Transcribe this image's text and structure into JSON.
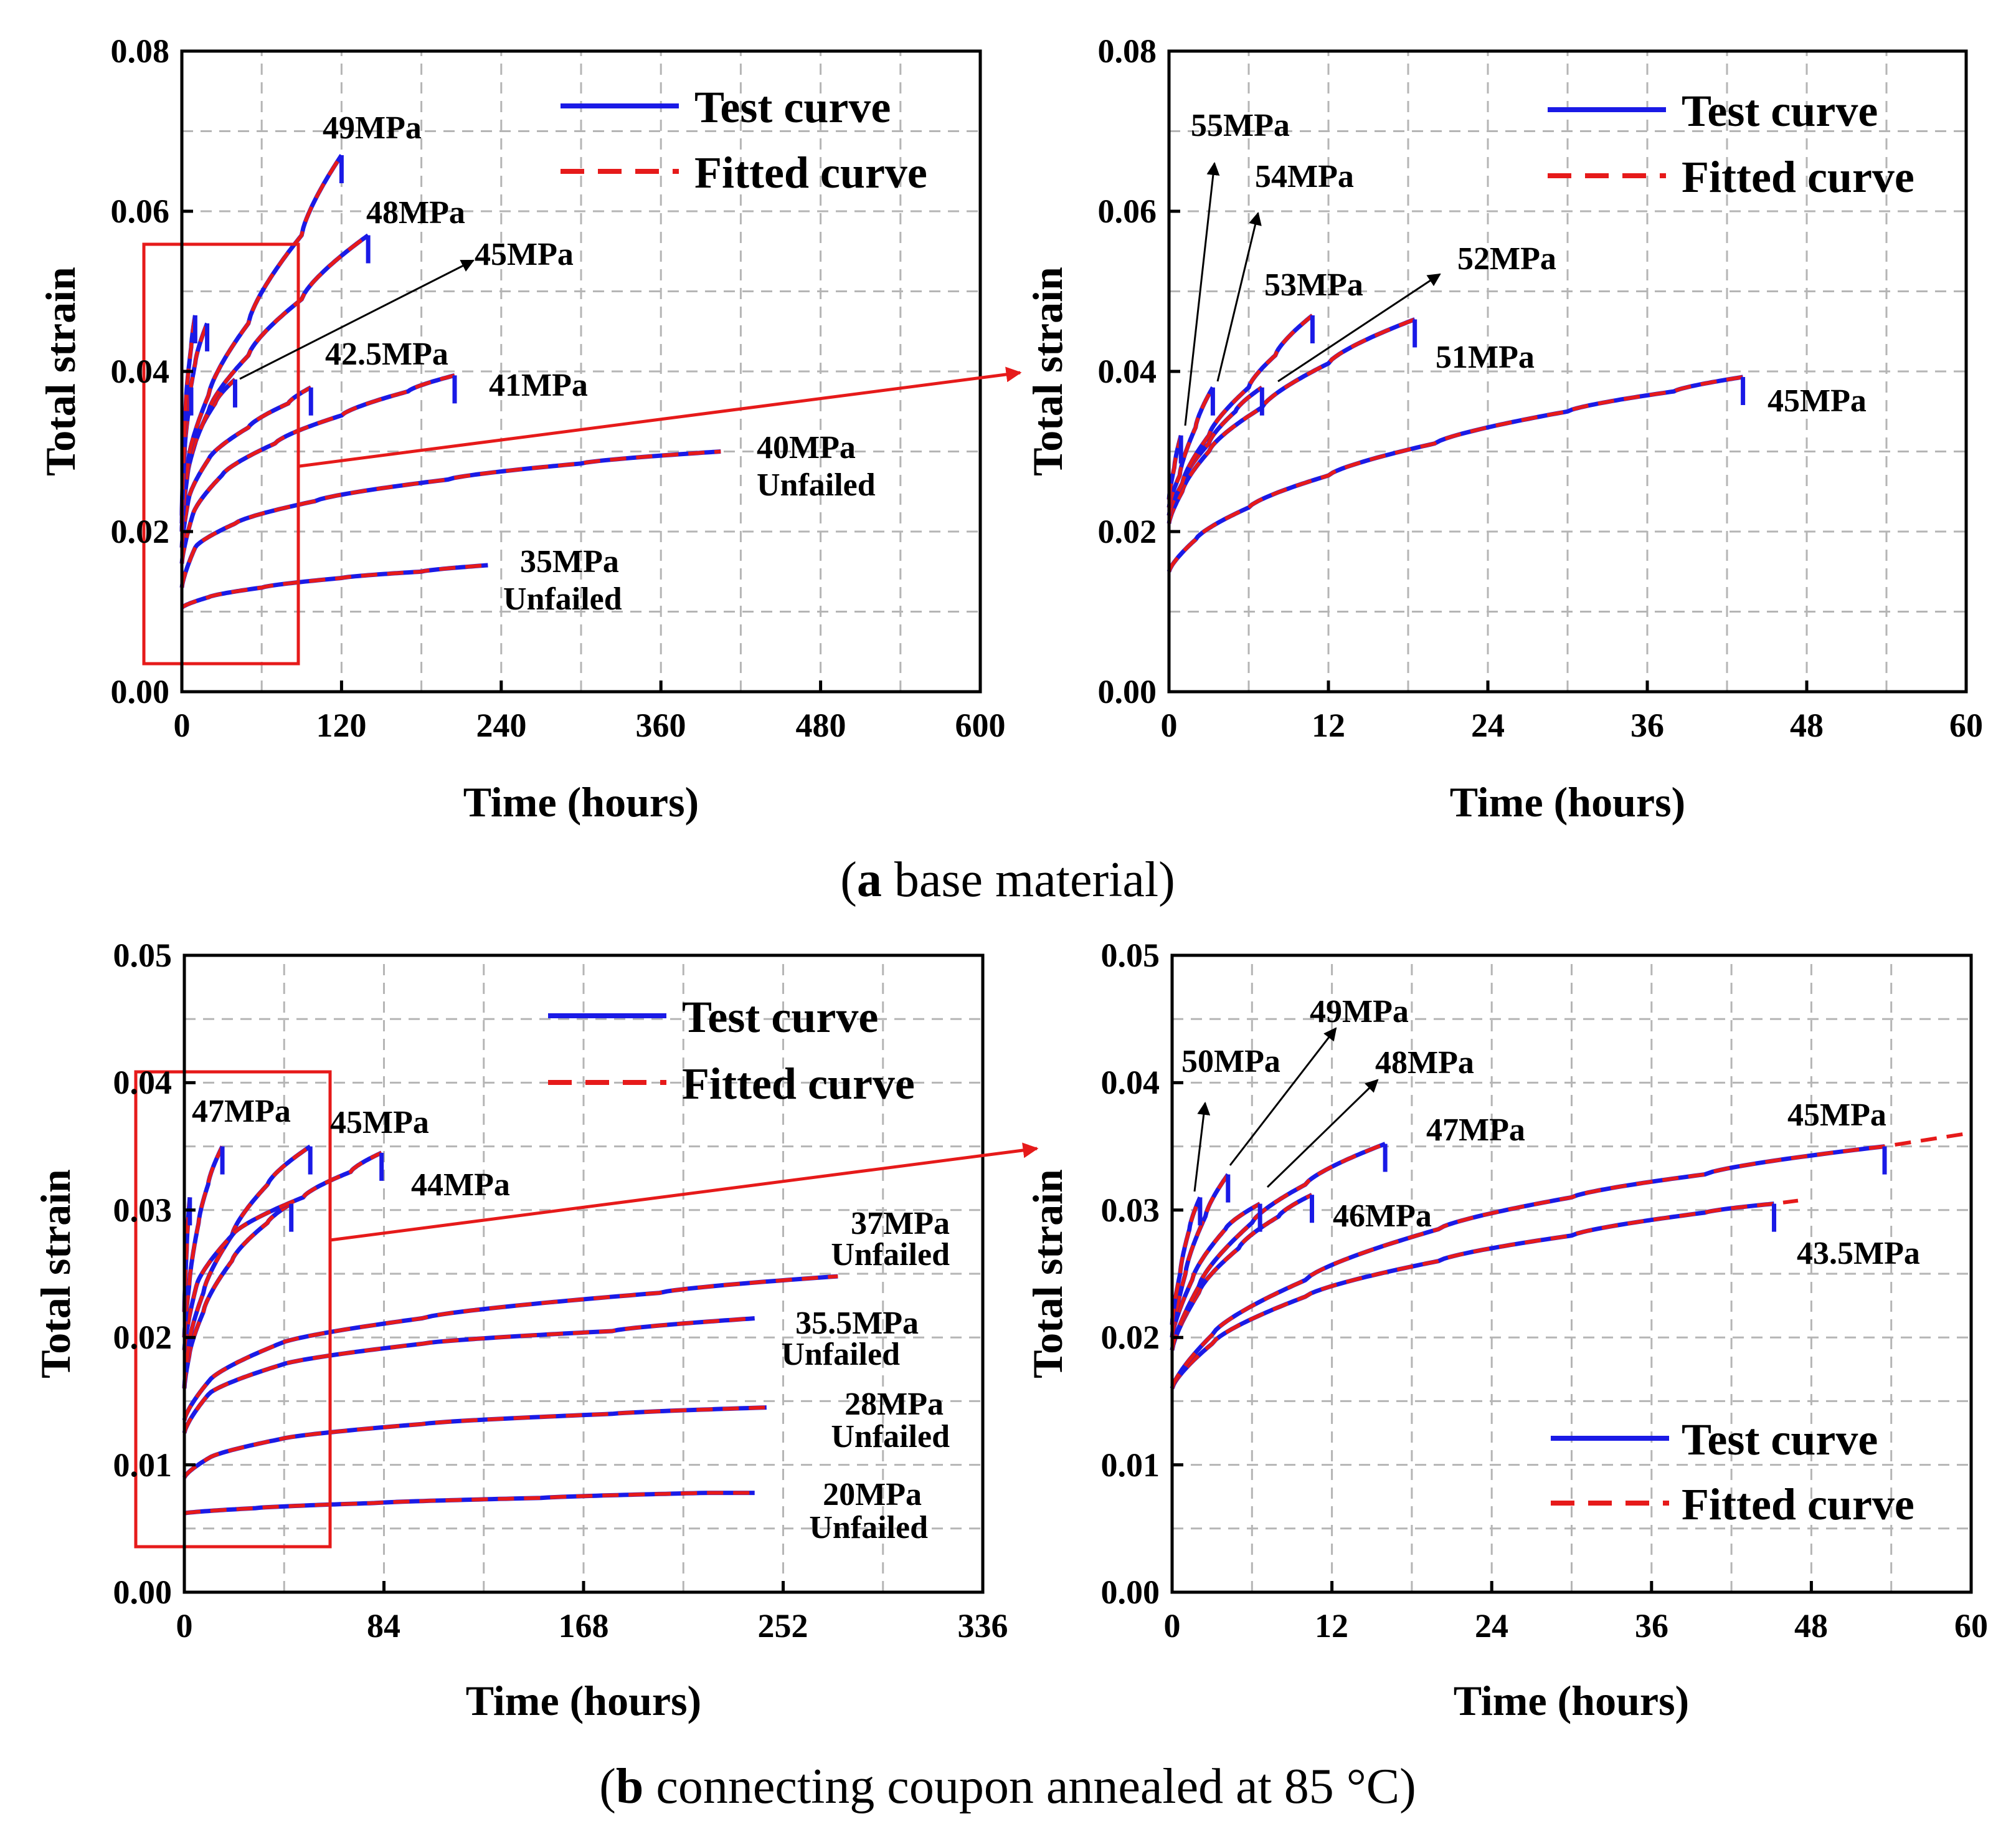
{
  "figure": {
    "caption_a": {
      "letter": "a",
      "text": " base material"
    },
    "caption_b": {
      "letter": "b",
      "text": " connecting coupon annealed at 85 °C"
    },
    "colors": {
      "test": "#1a1ae6",
      "fitted": "#e61a1a",
      "grid": "#b5b5b5",
      "zoom_box": "#e61a1a"
    }
  },
  "chart_data": [
    {
      "id": "a-left",
      "type": "line",
      "xlabel": "Time (hours)",
      "ylabel": "Total strain",
      "xlim": [
        0,
        600
      ],
      "ylim": [
        0,
        0.08
      ],
      "xticks": [
        0,
        120,
        240,
        360,
        480,
        600
      ],
      "yticks": [
        0.0,
        0.02,
        0.04,
        0.06,
        0.08
      ],
      "ytick_labels": [
        "0.00",
        "0.02",
        "0.04",
        "0.06",
        "0.08"
      ],
      "legend": {
        "position": "top-right",
        "entries": [
          {
            "label": "Test curve",
            "style": "solid"
          },
          {
            "label": "Fitted curve",
            "style": "dashed"
          }
        ]
      },
      "zoom_box": {
        "x": [
          -30,
          85
        ],
        "y": [
          0.004,
          0.0565
        ]
      },
      "series": [
        {
          "name": "35MPa",
          "x": [
            0,
            20,
            60,
            120,
            180,
            230
          ],
          "y": [
            0.0105,
            0.0118,
            0.013,
            0.0142,
            0.015,
            0.0158
          ],
          "failed": false
        },
        {
          "name": "40MPa",
          "x": [
            0,
            10,
            40,
            100,
            200,
            300,
            405
          ],
          "y": [
            0.013,
            0.018,
            0.021,
            0.0238,
            0.0265,
            0.0285,
            0.03
          ],
          "failed": false
        },
        {
          "name": "41MPa",
          "x": [
            0,
            8,
            30,
            70,
            120,
            170,
            205
          ],
          "y": [
            0.016,
            0.022,
            0.027,
            0.031,
            0.0345,
            0.0375,
            0.0395
          ],
          "failed": true
        },
        {
          "name": "42.5MPa",
          "x": [
            0,
            5,
            20,
            50,
            80,
            97
          ],
          "y": [
            0.018,
            0.024,
            0.029,
            0.033,
            0.036,
            0.038
          ],
          "failed": true
        },
        {
          "name": "45MPa",
          "x": [
            0,
            3,
            10,
            25,
            40
          ],
          "y": [
            0.02,
            0.026,
            0.031,
            0.036,
            0.039
          ],
          "failed": true
        },
        {
          "name": "48MPa",
          "x": [
            0,
            5,
            20,
            50,
            90,
            140
          ],
          "y": [
            0.02,
            0.028,
            0.035,
            0.042,
            0.049,
            0.057
          ],
          "failed": true
        },
        {
          "name": "49MPa",
          "x": [
            0,
            5,
            20,
            50,
            90,
            120
          ],
          "y": [
            0.02,
            0.029,
            0.037,
            0.046,
            0.057,
            0.067
          ],
          "failed": true
        },
        {
          "name": "51MPa",
          "x": [
            0,
            3,
            10,
            19
          ],
          "y": [
            0.021,
            0.033,
            0.041,
            0.046
          ],
          "failed": true
        },
        {
          "name": "52MPa",
          "x": [
            0,
            2,
            5,
            7
          ],
          "y": [
            0.022,
            0.03,
            0.035,
            0.038
          ],
          "failed": true
        },
        {
          "name": "53MPa",
          "x": [
            0,
            3,
            7,
            10
          ],
          "y": [
            0.022,
            0.036,
            0.043,
            0.047
          ],
          "failed": true
        }
      ],
      "annotations": [
        {
          "text": "49MPa"
        },
        {
          "text": "48MPa"
        },
        {
          "text": "45MPa"
        },
        {
          "text": "42.5MPa"
        },
        {
          "text": "41MPa"
        },
        {
          "text": "40MPa"
        },
        {
          "text": "Unfailed"
        },
        {
          "text": "35MPa"
        },
        {
          "text": "Unfailed"
        }
      ]
    },
    {
      "id": "a-right",
      "type": "line",
      "xlabel": "Time (hours)",
      "ylabel": "Total strain",
      "xlim": [
        0,
        60
      ],
      "ylim": [
        0,
        0.08
      ],
      "xticks": [
        0,
        12,
        24,
        36,
        48,
        60
      ],
      "yticks": [
        0.0,
        0.02,
        0.04,
        0.06,
        0.08
      ],
      "ytick_labels": [
        "0.00",
        "0.02",
        "0.04",
        "0.06",
        "0.08"
      ],
      "legend": {
        "position": "top-right",
        "entries": [
          {
            "label": "Test curve",
            "style": "solid"
          },
          {
            "label": "Fitted curve",
            "style": "dashed"
          }
        ]
      },
      "series": [
        {
          "name": "45MPa",
          "x": [
            0,
            2,
            6,
            12,
            20,
            30,
            38,
            43.2
          ],
          "y": [
            0.015,
            0.019,
            0.023,
            0.027,
            0.031,
            0.035,
            0.0375,
            0.0393
          ],
          "failed": true
        },
        {
          "name": "51MPa",
          "x": [
            0,
            1,
            3,
            7,
            12,
            18.5
          ],
          "y": [
            0.021,
            0.025,
            0.03,
            0.0355,
            0.041,
            0.0465
          ],
          "failed": true
        },
        {
          "name": "52MPa",
          "x": [
            0,
            1,
            3,
            5,
            7
          ],
          "y": [
            0.022,
            0.026,
            0.031,
            0.035,
            0.038
          ],
          "failed": true
        },
        {
          "name": "53MPa",
          "x": [
            0,
            1,
            3,
            6,
            8,
            10.8
          ],
          "y": [
            0.022,
            0.026,
            0.032,
            0.038,
            0.042,
            0.047
          ],
          "failed": true
        },
        {
          "name": "54MPa",
          "x": [
            0,
            0.8,
            2,
            3.3
          ],
          "y": [
            0.023,
            0.027,
            0.033,
            0.038
          ],
          "failed": true
        },
        {
          "name": "55MPa",
          "x": [
            0,
            0.4,
            0.9
          ],
          "y": [
            0.024,
            0.028,
            0.032
          ],
          "failed": true
        }
      ],
      "annotations": [
        {
          "text": "55MPa"
        },
        {
          "text": "54MPa"
        },
        {
          "text": "53MPa"
        },
        {
          "text": "52MPa"
        },
        {
          "text": "51MPa"
        },
        {
          "text": "45MPa"
        }
      ]
    },
    {
      "id": "b-left",
      "type": "line",
      "xlabel": "Time (hours)",
      "ylabel": "Total strain",
      "xlim": [
        0,
        336
      ],
      "ylim": [
        0,
        0.05
      ],
      "xticks": [
        0,
        84,
        168,
        252,
        336
      ],
      "yticks": [
        0.0,
        0.01,
        0.02,
        0.03,
        0.04,
        0.05
      ],
      "ytick_labels": [
        "0.00",
        "0.01",
        "0.02",
        "0.03",
        "0.04",
        "0.05"
      ],
      "legend": {
        "position": "top-right",
        "entries": [
          {
            "label": "Test curve",
            "style": "solid"
          },
          {
            "label": "Fitted curve",
            "style": "dashed"
          }
        ]
      },
      "zoom_box": {
        "x": [
          -20,
          57
        ],
        "y": [
          0.0036,
          0.0412
        ]
      },
      "series": [
        {
          "name": "20MPa",
          "x": [
            0,
            30,
            80,
            150,
            220,
            240
          ],
          "y": [
            0.0062,
            0.0066,
            0.007,
            0.0074,
            0.0078,
            0.0078
          ],
          "failed": false
        },
        {
          "name": "28MPa",
          "x": [
            0,
            10,
            40,
            100,
            180,
            245
          ],
          "y": [
            0.009,
            0.0105,
            0.012,
            0.0132,
            0.014,
            0.0145
          ],
          "failed": false
        },
        {
          "name": "35.5MPa",
          "x": [
            0,
            10,
            40,
            100,
            180,
            240
          ],
          "y": [
            0.0125,
            0.0155,
            0.0178,
            0.0195,
            0.0205,
            0.0215
          ],
          "failed": false
        },
        {
          "name": "37MPa",
          "x": [
            0,
            10,
            40,
            100,
            200,
            275
          ],
          "y": [
            0.0135,
            0.0165,
            0.0195,
            0.0215,
            0.0235,
            0.0248
          ],
          "failed": false
        },
        {
          "name": "43.5MPa",
          "x": [
            0,
            2,
            8,
            20,
            35,
            45
          ],
          "y": [
            0.016,
            0.0185,
            0.022,
            0.026,
            0.029,
            0.0305
          ],
          "failed": true
        },
        {
          "name": "45MPa",
          "x": [
            0,
            2,
            8,
            20,
            35,
            53
          ],
          "y": [
            0.016,
            0.0195,
            0.0235,
            0.028,
            0.032,
            0.035
          ],
          "failed": true
        },
        {
          "name": "44MPa",
          "x": [
            0,
            5,
            20,
            50,
            70,
            83
          ],
          "y": [
            0.019,
            0.024,
            0.028,
            0.031,
            0.033,
            0.0345
          ],
          "failed": true
        },
        {
          "name": "47MPa",
          "x": [
            0,
            2,
            6,
            10,
            16
          ],
          "y": [
            0.02,
            0.024,
            0.029,
            0.032,
            0.035
          ],
          "failed": true
        },
        {
          "name": "50MPa",
          "x": [
            0,
            1,
            2.3
          ],
          "y": [
            0.022,
            0.027,
            0.031
          ],
          "failed": true
        }
      ],
      "annotations": [
        {
          "text": "47MPa"
        },
        {
          "text": "45MPa"
        },
        {
          "text": "44MPa"
        },
        {
          "text": "37MPa"
        },
        {
          "text": "Unfailed"
        },
        {
          "text": "35.5MPa"
        },
        {
          "text": "Unfailed"
        },
        {
          "text": "28MPa"
        },
        {
          "text": "Unfailed"
        },
        {
          "text": "20MPa"
        },
        {
          "text": "Unfailed"
        }
      ]
    },
    {
      "id": "b-right",
      "type": "line",
      "xlabel": "Time (hours)",
      "ylabel": "Total strain",
      "xlim": [
        0,
        60
      ],
      "ylim": [
        0,
        0.05
      ],
      "xticks": [
        0,
        12,
        24,
        36,
        48,
        60
      ],
      "yticks": [
        0.0,
        0.01,
        0.02,
        0.03,
        0.04,
        0.05
      ],
      "ytick_labels": [
        "0.00",
        "0.01",
        "0.02",
        "0.03",
        "0.04",
        "0.05"
      ],
      "legend": {
        "position": "bottom-right",
        "entries": [
          {
            "label": "Test curve",
            "style": "solid"
          },
          {
            "label": "Fitted curve",
            "style": "dashed"
          }
        ]
      },
      "series": [
        {
          "name": "43.5MPa",
          "x": [
            0,
            3,
            10,
            20,
            30,
            40,
            45.2
          ],
          "y": [
            0.016,
            0.0195,
            0.0232,
            0.026,
            0.028,
            0.0298,
            0.0305
          ],
          "failed": true,
          "fit_extend_to": 47
        },
        {
          "name": "45MPa",
          "x": [
            0,
            3,
            10,
            20,
            30,
            40,
            53.5
          ],
          "y": [
            0.016,
            0.0202,
            0.0245,
            0.0285,
            0.031,
            0.0328,
            0.035
          ],
          "failed": true,
          "fit_extend_to": 60
        },
        {
          "name": "46MPa",
          "x": [
            0,
            2,
            5,
            8,
            10.5
          ],
          "y": [
            0.019,
            0.0235,
            0.027,
            0.0295,
            0.0312
          ],
          "failed": true
        },
        {
          "name": "47MPa",
          "x": [
            0,
            2,
            6,
            10,
            16
          ],
          "y": [
            0.019,
            0.024,
            0.029,
            0.032,
            0.0352
          ],
          "failed": true
        },
        {
          "name": "48MPa",
          "x": [
            0,
            1.5,
            4,
            6.6
          ],
          "y": [
            0.02,
            0.0245,
            0.0285,
            0.0305
          ],
          "failed": true
        },
        {
          "name": "49MPa",
          "x": [
            0,
            1,
            2.5,
            4.2
          ],
          "y": [
            0.02,
            0.025,
            0.0295,
            0.0328
          ],
          "failed": true
        },
        {
          "name": "50MPa",
          "x": [
            0,
            0.6,
            1.3,
            2.1
          ],
          "y": [
            0.021,
            0.025,
            0.0285,
            0.031
          ],
          "failed": true
        }
      ],
      "annotations": [
        {
          "text": "50MPa"
        },
        {
          "text": "49MPa"
        },
        {
          "text": "48MPa"
        },
        {
          "text": "47MPa"
        },
        {
          "text": "46MPa"
        },
        {
          "text": "45MPa"
        },
        {
          "text": "43.5MPa"
        }
      ]
    }
  ]
}
